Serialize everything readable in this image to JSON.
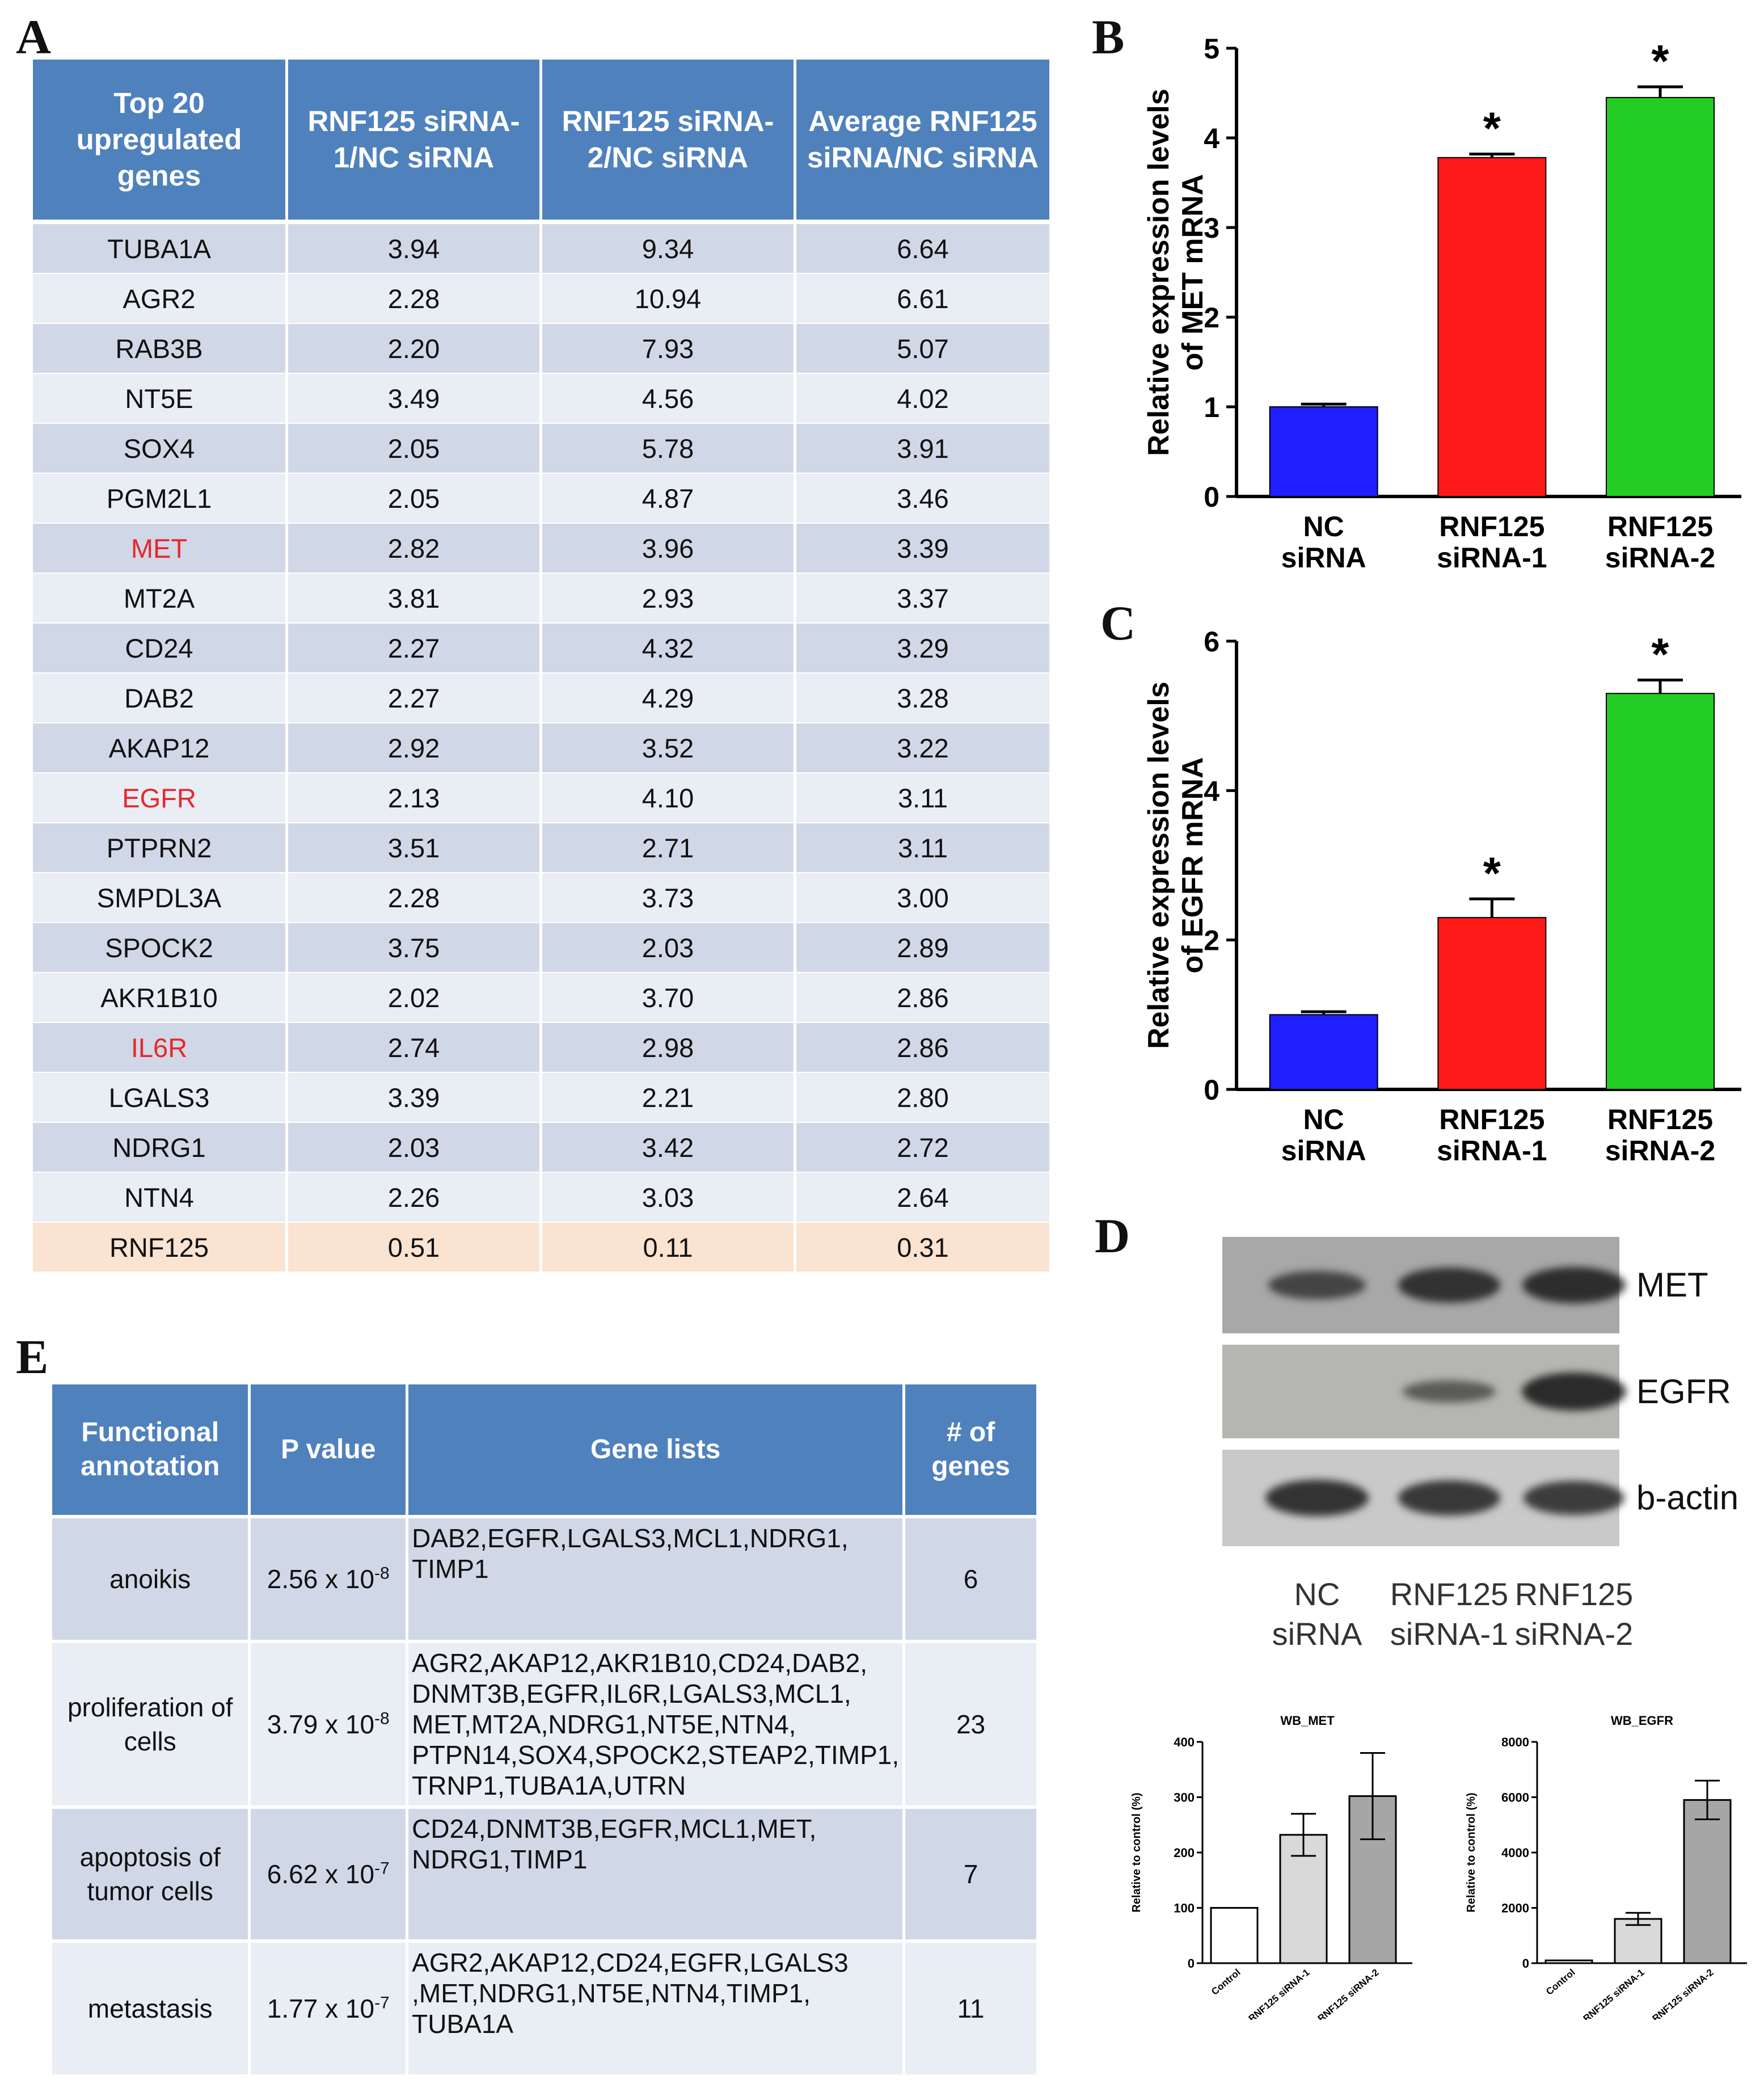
{
  "panels": {
    "a": "A",
    "b": "B",
    "c": "C",
    "d": "D",
    "e": "E"
  },
  "tableA": {
    "headers": [
      "Top 20 upregulated genes",
      "RNF125 siRNA-1/NC siRNA",
      "RNF125 siRNA-2/NC siRNA",
      "Average RNF125 siRNA/NC siRNA"
    ],
    "rows": [
      [
        "TUBA1A",
        "3.94",
        "9.34",
        "6.64"
      ],
      [
        "AGR2",
        "2.28",
        "10.94",
        "6.61"
      ],
      [
        "RAB3B",
        "2.20",
        "7.93",
        "5.07"
      ],
      [
        "NT5E",
        "3.49",
        "4.56",
        "4.02"
      ],
      [
        "SOX4",
        "2.05",
        "5.78",
        "3.91"
      ],
      [
        "PGM2L1",
        "2.05",
        "4.87",
        "3.46"
      ],
      [
        "MET",
        "2.82",
        "3.96",
        "3.39"
      ],
      [
        "MT2A",
        "3.81",
        "2.93",
        "3.37"
      ],
      [
        "CD24",
        "2.27",
        "4.32",
        "3.29"
      ],
      [
        "DAB2",
        "2.27",
        "4.29",
        "3.28"
      ],
      [
        "AKAP12",
        "2.92",
        "3.52",
        "3.22"
      ],
      [
        "EGFR",
        "2.13",
        "4.10",
        "3.11"
      ],
      [
        "PTPRN2",
        "3.51",
        "2.71",
        "3.11"
      ],
      [
        "SMPDL3A",
        "2.28",
        "3.73",
        "3.00"
      ],
      [
        "SPOCK2",
        "3.75",
        "2.03",
        "2.89"
      ],
      [
        "AKR1B10",
        "2.02",
        "3.70",
        "2.86"
      ],
      [
        "IL6R",
        "2.74",
        "2.98",
        "2.86"
      ],
      [
        "LGALS3",
        "3.39",
        "2.21",
        "2.80"
      ],
      [
        "NDRG1",
        "2.03",
        "3.42",
        "2.72"
      ],
      [
        "NTN4",
        "2.26",
        "3.03",
        "2.64"
      ],
      [
        "RNF125",
        "0.51",
        "0.11",
        "0.31"
      ]
    ],
    "highlighted_genes": [
      "MET",
      "EGFR",
      "IL6R"
    ],
    "highlight_color": "#e8272a",
    "header_color": "#4f81bd"
  },
  "tableE": {
    "headers": [
      "Functional annotation",
      "P value",
      "Gene lists",
      "# of genes"
    ],
    "rows": [
      {
        "func": "anoikis",
        "p_base": "2.56 x 10",
        "p_exp": "-8",
        "genes": "DAB2,EGFR,LGALS3,MCL1,NDRG1, TIMP1",
        "n": "6"
      },
      {
        "func": "proliferation of cells",
        "p_base": "3.79 x 10",
        "p_exp": "-8",
        "genes": "AGR2,AKAP12,AKR1B10,CD24,DAB2, DNMT3B,EGFR,IL6R,LGALS3,MCL1, MET,MT2A,NDRG1,NT5E,NTN4, PTPN14,SOX4,SPOCK2,STEAP2,TIMP1, TRNP1,TUBA1A,UTRN",
        "n": "23"
      },
      {
        "func": "apoptosis of tumor cells",
        "p_base": "6.62 x 10",
        "p_exp": "-7",
        "genes": "CD24,DNMT3B,EGFR,MCL1,MET, NDRG1,TIMP1",
        "n": "7"
      },
      {
        "func": "metastasis",
        "p_base": "1.77 x 10",
        "p_exp": "-7",
        "genes": "AGR2,AKAP12,CD24,EGFR,LGALS3 ,MET,NDRG1,NT5E,NTN4,TIMP1, TUBA1A",
        "n": "11"
      }
    ]
  },
  "chart_data": [
    {
      "id": "B",
      "type": "bar",
      "ylabel_lines": [
        "Relative expression levels",
        "of MET mRNA"
      ],
      "categories": [
        [
          "NC",
          "siRNA"
        ],
        [
          "RNF125",
          "siRNA-1"
        ],
        [
          "RNF125",
          "siRNA-2"
        ]
      ],
      "values": [
        1.0,
        3.78,
        4.45
      ],
      "errors": [
        0.03,
        0.04,
        0.12
      ],
      "colors": [
        "#1f1fff",
        "#ff1a1a",
        "#22cc22"
      ],
      "significance": [
        "",
        "*",
        "*"
      ],
      "ylim": [
        0,
        5
      ],
      "yticks": [
        "0",
        "1",
        "2",
        "3",
        "4",
        "5"
      ],
      "ytick_values": [
        0,
        1,
        2,
        3,
        4,
        5
      ]
    },
    {
      "id": "C",
      "type": "bar",
      "ylabel_lines": [
        "Relative expression levels",
        "of EGFR mRNA"
      ],
      "categories": [
        [
          "NC",
          "siRNA"
        ],
        [
          "RNF125",
          "siRNA-1"
        ],
        [
          "RNF125",
          "siRNA-2"
        ]
      ],
      "values": [
        1.0,
        2.3,
        5.3
      ],
      "errors": [
        0.04,
        0.25,
        0.18
      ],
      "colors": [
        "#1f1fff",
        "#ff1a1a",
        "#22cc22"
      ],
      "significance": [
        "",
        "*",
        "*"
      ],
      "ylim": [
        0,
        6
      ],
      "yticks": [
        "0",
        "2",
        "4",
        "6"
      ],
      "ytick_values": [
        0,
        2,
        4,
        6
      ]
    },
    {
      "id": "WB_MET",
      "type": "bar",
      "title": "WB_MET",
      "ylabel": "Relative to control (%)",
      "categories": [
        "Control",
        "RNF125 siRNA-1",
        "RNF125 siRNA-2"
      ],
      "values": [
        100,
        232,
        302
      ],
      "errors": [
        0,
        38,
        78
      ],
      "colors": [
        "#ffffff",
        "#d9d9d9",
        "#a6a6a6"
      ],
      "ylim": [
        0,
        400
      ],
      "yticks": [
        "0",
        "100",
        "200",
        "300",
        "400"
      ],
      "ytick_values": [
        0,
        100,
        200,
        300,
        400
      ]
    },
    {
      "id": "WB_EGFR",
      "type": "bar",
      "title": "WB_EGFR",
      "ylabel": "Relative to control (%)",
      "categories": [
        "Control",
        "RNF125 siRNA-1",
        "RNF125 siRNA-2"
      ],
      "values": [
        100,
        1600,
        5900
      ],
      "errors": [
        0,
        220,
        700
      ],
      "colors": [
        "#ffffff",
        "#d9d9d9",
        "#a6a6a6"
      ],
      "ylim": [
        0,
        8000
      ],
      "yticks": [
        "0",
        "2000",
        "4000",
        "6000",
        "8000"
      ],
      "ytick_values": [
        0,
        2000,
        4000,
        6000,
        8000
      ]
    }
  ],
  "western_blot": {
    "rows": [
      {
        "label": "MET",
        "intensity": [
          0.55,
          0.75,
          0.8
        ]
      },
      {
        "label": "EGFR",
        "intensity": [
          0.0,
          0.35,
          0.85
        ]
      },
      {
        "label": "b-actin",
        "intensity": [
          0.8,
          0.75,
          0.72
        ]
      }
    ],
    "lanes": [
      [
        "NC",
        "siRNA"
      ],
      [
        "RNF125",
        "siRNA-1"
      ],
      [
        "RNF125",
        "siRNA-2"
      ]
    ]
  }
}
